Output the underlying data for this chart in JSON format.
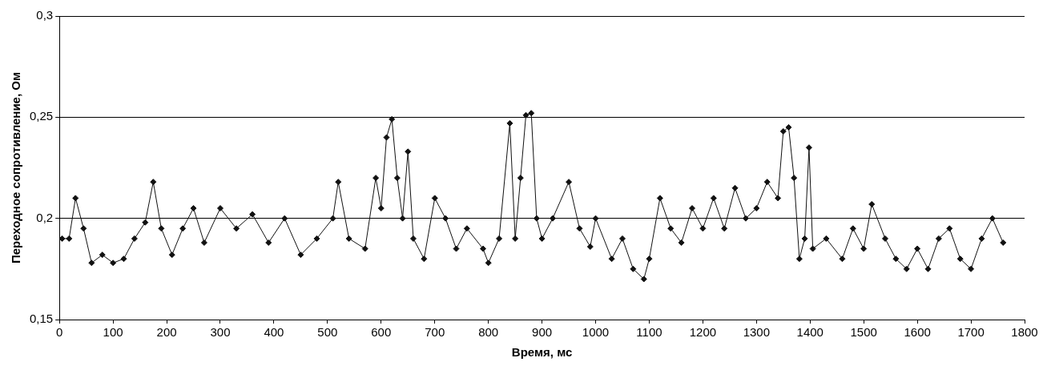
{
  "chart_data": {
    "type": "line",
    "xlabel": "Время, мс",
    "ylabel": "Переходное сопротивление, Ом",
    "grid": "y",
    "marker": "diamond",
    "line_style": "solid",
    "xlim": [
      0,
      1800
    ],
    "xticks": [
      0,
      100,
      200,
      300,
      400,
      500,
      600,
      700,
      800,
      900,
      1000,
      1100,
      1200,
      1300,
      1400,
      1500,
      1600,
      1700,
      1800
    ],
    "ylim": [
      0.15,
      0.3
    ],
    "yticks": [
      {
        "value": 0.15,
        "label": "0,15"
      },
      {
        "value": 0.2,
        "label": "0,2"
      },
      {
        "value": 0.25,
        "label": "0,25"
      },
      {
        "value": 0.3,
        "label": "0,3"
      }
    ],
    "series": [
      {
        "color": "#111111",
        "x": [
          5,
          18,
          30,
          45,
          60,
          80,
          100,
          120,
          140,
          160,
          175,
          190,
          210,
          230,
          250,
          270,
          300,
          330,
          360,
          390,
          420,
          450,
          480,
          510,
          520,
          540,
          570,
          590,
          600,
          610,
          620,
          630,
          640,
          650,
          660,
          680,
          700,
          720,
          740,
          760,
          790,
          800,
          820,
          840,
          850,
          860,
          870,
          880,
          890,
          900,
          920,
          950,
          970,
          990,
          1000,
          1030,
          1050,
          1070,
          1090,
          1100,
          1120,
          1140,
          1160,
          1180,
          1200,
          1220,
          1240,
          1260,
          1280,
          1300,
          1320,
          1340,
          1350,
          1360,
          1370,
          1380,
          1390,
          1398,
          1405,
          1430,
          1460,
          1480,
          1500,
          1515,
          1540,
          1560,
          1580,
          1600,
          1620,
          1640,
          1660,
          1680,
          1700,
          1720,
          1740,
          1760
        ],
        "values": [
          0.19,
          0.19,
          0.21,
          0.195,
          0.178,
          0.182,
          0.178,
          0.18,
          0.19,
          0.198,
          0.218,
          0.195,
          0.182,
          0.195,
          0.205,
          0.188,
          0.205,
          0.195,
          0.202,
          0.188,
          0.2,
          0.182,
          0.19,
          0.2,
          0.218,
          0.19,
          0.185,
          0.22,
          0.205,
          0.24,
          0.249,
          0.22,
          0.2,
          0.233,
          0.19,
          0.18,
          0.21,
          0.2,
          0.185,
          0.195,
          0.185,
          0.178,
          0.19,
          0.247,
          0.19,
          0.22,
          0.251,
          0.252,
          0.2,
          0.19,
          0.2,
          0.218,
          0.195,
          0.186,
          0.2,
          0.18,
          0.19,
          0.175,
          0.17,
          0.18,
          0.21,
          0.195,
          0.188,
          0.205,
          0.195,
          0.21,
          0.195,
          0.215,
          0.2,
          0.205,
          0.218,
          0.21,
          0.243,
          0.245,
          0.22,
          0.18,
          0.19,
          0.235,
          0.185,
          0.19,
          0.18,
          0.195,
          0.185,
          0.207,
          0.19,
          0.18,
          0.175,
          0.185,
          0.175,
          0.19,
          0.195,
          0.18,
          0.175,
          0.19,
          0.2,
          0.188
        ]
      }
    ]
  }
}
